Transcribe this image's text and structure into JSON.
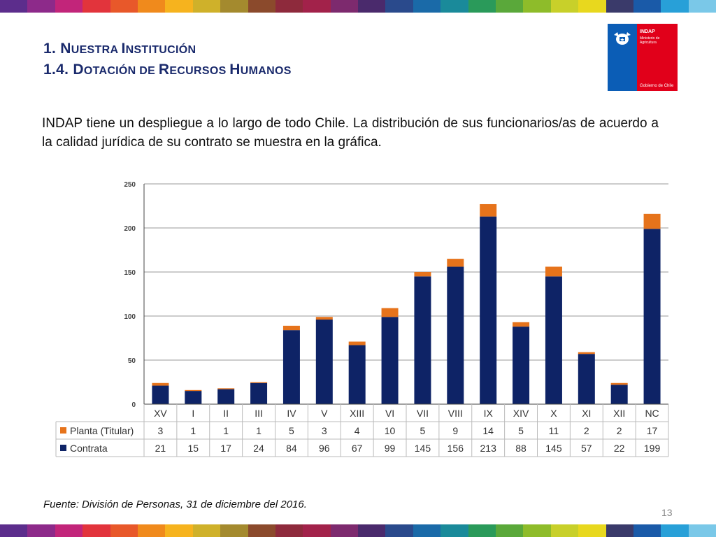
{
  "slide": {
    "title_line1": {
      "lead": "1. N",
      "sc": "UESTRA ",
      "lead2": "I",
      "sc2": "NSTITUCIÓN"
    },
    "title_line2": {
      "lead": "1.4. D",
      "sc": "OTACIÓN DE ",
      "lead2": "R",
      "sc2": "ECURSOS ",
      "lead3": "H",
      "sc3": "UMANOS"
    },
    "intro": "INDAP tiene un despliegue a lo largo de todo Chile. La distribución de sus funcionarios/as de acuerdo a la calidad jurídica de su contrato se muestra en la gráfica.",
    "source": "Fuente: División de Personas, 31 de diciembre del 2016.",
    "page_number": "13",
    "logo": {
      "name": "INDAP",
      "ministry": "Ministerio de Agricultura",
      "government": "Gobierno de Chile"
    }
  },
  "colors": {
    "contrata": "#0e2366",
    "planta": "#e6731b",
    "title": "#1a2a6c",
    "stripe": [
      "#5c2d8c",
      "#8d2a8a",
      "#c2257a",
      "#e2343c",
      "#e8582a",
      "#f08a1c",
      "#f6b31e",
      "#cfb12a",
      "#a48a2e",
      "#8b4a2c",
      "#8e2a3c",
      "#a2224a",
      "#7d2a6e",
      "#4a2a6c",
      "#2a4a8c",
      "#1a6aa8",
      "#1a8a9a",
      "#2a9a5a",
      "#5aa83a",
      "#8ebc2a",
      "#c8d02a",
      "#e8d81e",
      "#3a3a6a",
      "#1a5aa8",
      "#28a0d8",
      "#7ac8e8"
    ]
  },
  "chart_data": {
    "type": "bar",
    "stacked": true,
    "categories": [
      "XV",
      "I",
      "II",
      "III",
      "IV",
      "V",
      "XIII",
      "VI",
      "VII",
      "VIII",
      "IX",
      "XIV",
      "X",
      "XI",
      "XII",
      "NC"
    ],
    "series": [
      {
        "name": "Contrata",
        "values": [
          21,
          15,
          17,
          24,
          84,
          96,
          67,
          99,
          145,
          156,
          213,
          88,
          145,
          57,
          22,
          199
        ],
        "color": "#0e2366"
      },
      {
        "name": "Planta (Titular)",
        "values": [
          3,
          1,
          1,
          1,
          5,
          3,
          4,
          10,
          5,
          9,
          14,
          5,
          11,
          2,
          2,
          17
        ],
        "color": "#e6731b"
      }
    ],
    "table_order": [
      "Planta (Titular)",
      "Contrata"
    ],
    "yticks": [
      0,
      50,
      100,
      150,
      200,
      250
    ],
    "ylim": [
      0,
      250
    ],
    "grid": true,
    "legend": "data-table"
  }
}
